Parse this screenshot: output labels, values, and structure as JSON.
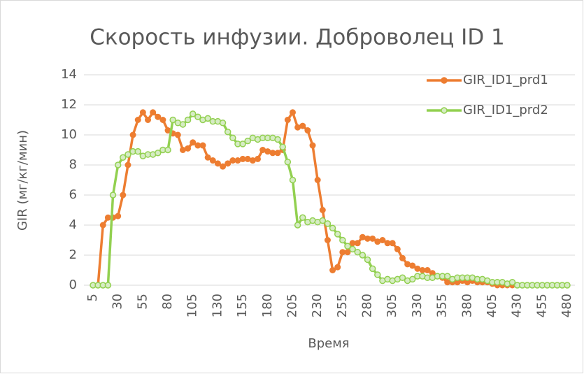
{
  "chart_data": {
    "type": "line",
    "title": "Скорость инфузии. Доброволец ID 1",
    "x_label": "Время",
    "y_label": "GIR (мг/кг/мин)",
    "x": [
      5,
      10,
      15,
      20,
      25,
      30,
      35,
      40,
      45,
      50,
      55,
      60,
      65,
      70,
      75,
      80,
      85,
      90,
      95,
      100,
      105,
      110,
      115,
      120,
      125,
      130,
      135,
      140,
      145,
      150,
      155,
      160,
      165,
      170,
      175,
      180,
      185,
      190,
      195,
      200,
      205,
      210,
      215,
      220,
      225,
      230,
      235,
      240,
      245,
      250,
      255,
      260,
      265,
      270,
      275,
      280,
      285,
      290,
      295,
      300,
      305,
      310,
      315,
      320,
      325,
      330,
      335,
      340,
      345,
      350,
      355,
      360,
      365,
      370,
      375,
      380,
      385,
      390,
      395,
      400,
      405,
      410,
      415,
      420,
      425,
      430,
      435,
      440,
      445,
      450,
      455,
      460,
      465,
      470,
      475,
      480
    ],
    "series": [
      {
        "name": "GIR_ID1_prd1",
        "color": "#ed7d31",
        "values": [
          0,
          0,
          4,
          4.5,
          4.5,
          4.6,
          6,
          8,
          10,
          11,
          11.5,
          11,
          11.5,
          11.2,
          11,
          10.3,
          10.1,
          10,
          9,
          9.1,
          9.5,
          9.3,
          9.3,
          8.5,
          8.3,
          8.1,
          7.9,
          8.1,
          8.3,
          8.3,
          8.4,
          8.4,
          8.3,
          8.4,
          9,
          8.9,
          8.8,
          8.8,
          9,
          11,
          11.5,
          10.5,
          10.6,
          10.3,
          9.3,
          7,
          5,
          3,
          1,
          1.2,
          2.2,
          2.2,
          2.8,
          2.8,
          3.2,
          3.1,
          3.1,
          2.9,
          3,
          2.8,
          2.8,
          2.4,
          1.8,
          1.4,
          1.3,
          1.1,
          1,
          1,
          0.8,
          0.6,
          0.5,
          0.2,
          0.2,
          0.2,
          0.3,
          0.2,
          0.3,
          0.2,
          0.2,
          0.2,
          0.1,
          0,
          0,
          0,
          0,
          0,
          0,
          0,
          0,
          0,
          0,
          0,
          0,
          0,
          0,
          0
        ]
      },
      {
        "name": "GIR_ID1_prd2",
        "color": "#92d050",
        "values": [
          0,
          0,
          0,
          0,
          6,
          8,
          8.5,
          8.7,
          8.9,
          8.9,
          8.6,
          8.7,
          8.7,
          8.8,
          9,
          9,
          11,
          10.8,
          10.7,
          11,
          11.4,
          11.2,
          11,
          11.1,
          10.9,
          10.9,
          10.8,
          10.2,
          9.8,
          9.4,
          9.4,
          9.6,
          9.8,
          9.7,
          9.8,
          9.8,
          9.8,
          9.7,
          9.2,
          8.2,
          7,
          4,
          4.5,
          4.2,
          4.3,
          4.2,
          4.3,
          4.1,
          3.8,
          3.4,
          3,
          2.6,
          2.4,
          2.2,
          2,
          1.7,
          1.1,
          0.7,
          0.3,
          0.4,
          0.3,
          0.4,
          0.5,
          0.3,
          0.4,
          0.6,
          0.6,
          0.5,
          0.5,
          0.6,
          0.6,
          0.6,
          0.4,
          0.5,
          0.5,
          0.5,
          0.5,
          0.4,
          0.4,
          0.3,
          0.2,
          0.2,
          0.2,
          0.1,
          0.2,
          0,
          0,
          0,
          0,
          0,
          0,
          0,
          0,
          0,
          0,
          0
        ]
      }
    ],
    "xlim": [
      5,
      480
    ],
    "xticks": [
      5,
      30,
      55,
      80,
      105,
      130,
      155,
      180,
      205,
      230,
      255,
      280,
      305,
      330,
      355,
      380,
      405,
      430,
      455,
      480
    ],
    "ylim": [
      0,
      14
    ],
    "yticks": [
      0,
      2,
      4,
      6,
      8,
      10,
      12,
      14
    ],
    "grid": true,
    "legend": "top-right"
  }
}
